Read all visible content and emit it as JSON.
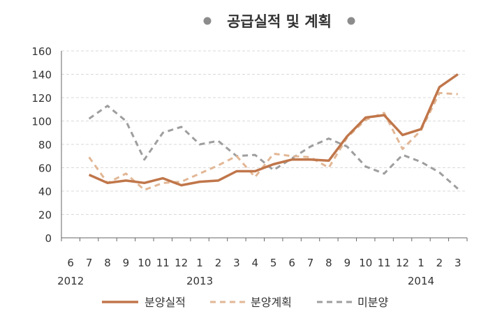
{
  "chart_data": {
    "type": "line",
    "title": "공급실적 및 계획",
    "xlabel": "",
    "ylabel": "",
    "ylim": [
      0,
      160
    ],
    "yticks": [
      0,
      20,
      40,
      60,
      80,
      100,
      120,
      140,
      160
    ],
    "grid": true,
    "legend_position": "bottom",
    "categories": [
      "6",
      "7",
      "8",
      "9",
      "10",
      "11",
      "12",
      "1",
      "2",
      "3",
      "4",
      "5",
      "6",
      "7",
      "8",
      "9",
      "10",
      "11",
      "12",
      "1",
      "2",
      "3"
    ],
    "year_labels": [
      {
        "label": "2012",
        "category_index": 0
      },
      {
        "label": "2013",
        "category_index": 7
      },
      {
        "label": "2014",
        "category_index": 19
      }
    ],
    "series": [
      {
        "name": "분양실적",
        "color": "#c0764a",
        "style": "solid",
        "values": [
          null,
          54,
          47,
          49,
          47,
          51,
          45,
          48,
          49,
          57,
          57,
          63,
          67,
          67,
          66,
          87,
          103,
          105,
          88,
          93,
          129,
          140
        ]
      },
      {
        "name": "분양계획",
        "color": "#e2b796",
        "style": "dashed",
        "values": [
          null,
          69,
          47,
          55,
          41,
          47,
          48,
          55,
          62,
          70,
          52,
          72,
          70,
          69,
          60,
          86,
          101,
          107,
          76,
          92,
          124,
          123
        ]
      },
      {
        "name": "미분양",
        "color": "#9e9e9e",
        "style": "dashed",
        "values": [
          null,
          102,
          113,
          100,
          67,
          90,
          95,
          80,
          83,
          70,
          71,
          58,
          68,
          78,
          85,
          78,
          61,
          55,
          71,
          65,
          56,
          42
        ]
      }
    ]
  }
}
